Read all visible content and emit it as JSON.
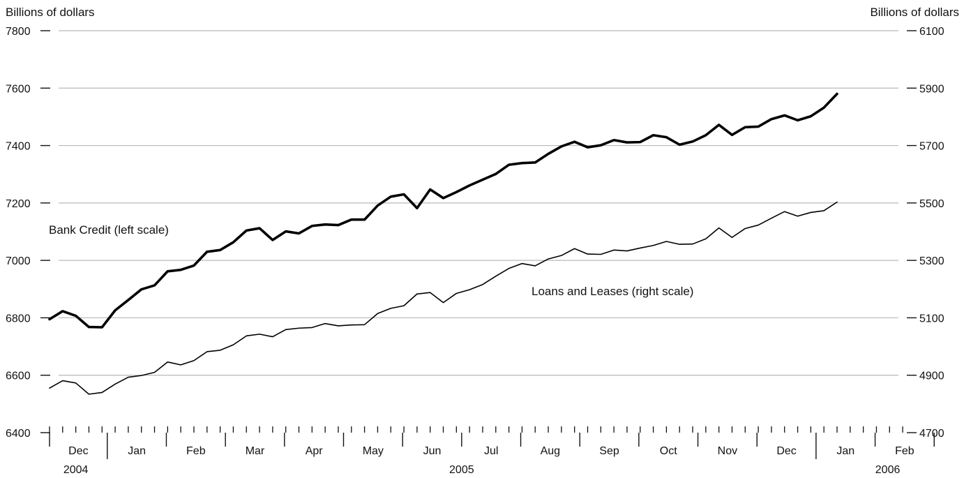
{
  "chart_data": {
    "type": "line",
    "left_axis": {
      "label": "Billions of dollars",
      "ylim": [
        6400,
        7800
      ],
      "ticks": [
        "6400",
        "6600",
        "6800",
        "7000",
        "7200",
        "7400",
        "7600",
        "7800"
      ]
    },
    "right_axis": {
      "label": "Billions of dollars",
      "ylim": [
        4700,
        6100
      ],
      "ticks": [
        "4700",
        "4900",
        "5100",
        "5300",
        "5500",
        "5700",
        "5900",
        "6100"
      ]
    },
    "grid": true,
    "x_weeks": 60,
    "months": [
      {
        "label": "Dec",
        "start": 0,
        "end": 4.4
      },
      {
        "label": "Jan",
        "start": 4.4,
        "end": 8.9
      },
      {
        "label": "Feb",
        "start": 8.9,
        "end": 13.4
      },
      {
        "label": "Mar",
        "start": 13.4,
        "end": 17.9
      },
      {
        "label": "Apr",
        "start": 17.9,
        "end": 22.4
      },
      {
        "label": "May",
        "start": 22.4,
        "end": 26.9
      },
      {
        "label": "Jun",
        "start": 26.9,
        "end": 31.4
      },
      {
        "label": "Jul",
        "start": 31.4,
        "end": 35.9
      },
      {
        "label": "Aug",
        "start": 35.9,
        "end": 40.4
      },
      {
        "label": "Sep",
        "start": 40.4,
        "end": 44.9
      },
      {
        "label": "Oct",
        "start": 44.9,
        "end": 49.4
      },
      {
        "label": "Nov",
        "start": 49.4,
        "end": 53.9
      },
      {
        "label": "Dec",
        "start": 53.9,
        "end": 58.4
      },
      {
        "label": "Jan",
        "start": 58.4,
        "end": 62.9
      },
      {
        "label": "Feb",
        "start": 62.9,
        "end": 67.4
      }
    ],
    "years": [
      {
        "label": "2004",
        "at": 2.0
      },
      {
        "label": "2005",
        "at": 31.4
      },
      {
        "label": "2006",
        "at": 62.9
      }
    ],
    "series": [
      {
        "name": "Bank Credit (left scale)",
        "axis": "left",
        "values": [
          6795,
          6823,
          6807,
          6768,
          6767,
          6826,
          6862,
          6899,
          6913,
          6962,
          6967,
          6982,
          7030,
          7036,
          7063,
          7104,
          7112,
          7071,
          7101,
          7094,
          7120,
          7125,
          7123,
          7142,
          7142,
          7191,
          7222,
          7230,
          7182,
          7247,
          7217,
          7238,
          7261,
          7281,
          7301,
          7333,
          7339,
          7341,
          7371,
          7397,
          7413,
          7394,
          7401,
          7419,
          7411,
          7412,
          7436,
          7429,
          7403,
          7414,
          7436,
          7472,
          7437,
          7464,
          7466,
          7492,
          7505,
          7488,
          7502,
          7532,
          7580
        ]
      },
      {
        "name": "Loans and Leases (right scale)",
        "axis": "right",
        "values": [
          4855,
          4881,
          4873,
          4834,
          4840,
          4869,
          4893,
          4899,
          4910,
          4946,
          4936,
          4951,
          4982,
          4987,
          5006,
          5037,
          5043,
          5034,
          5059,
          5064,
          5066,
          5080,
          5072,
          5075,
          5076,
          5115,
          5133,
          5142,
          5183,
          5188,
          5153,
          5185,
          5198,
          5216,
          5245,
          5272,
          5289,
          5281,
          5305,
          5317,
          5341,
          5322,
          5321,
          5336,
          5333,
          5343,
          5352,
          5366,
          5356,
          5357,
          5375,
          5413,
          5380,
          5411,
          5423,
          5447,
          5470,
          5454,
          5467,
          5473,
          5503
        ]
      }
    ]
  }
}
